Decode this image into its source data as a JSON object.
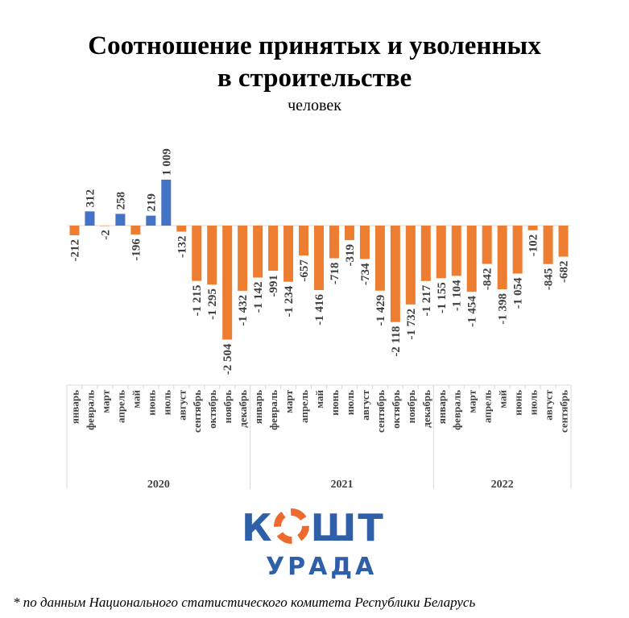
{
  "chart_data": {
    "type": "bar",
    "title": "Соотношение принятых и уволенных в строительстве",
    "title_lines": [
      "Соотношение принятых и уволенных",
      "в строительстве"
    ],
    "subtitle": "человек",
    "years": [
      {
        "label": "2020",
        "months": [
          "январь",
          "февраль",
          "март",
          "апрель",
          "май",
          "июнь",
          "июль",
          "август",
          "сентябрь",
          "октябрь",
          "ноябрь",
          "декабрь"
        ]
      },
      {
        "label": "2021",
        "months": [
          "январь",
          "февраль",
          "март",
          "апрель",
          "май",
          "июнь",
          "июль",
          "август",
          "сентябрь",
          "октябрь",
          "ноябрь",
          "декабрь"
        ]
      },
      {
        "label": "2022",
        "months": [
          "январь",
          "февраль",
          "март",
          "апрель",
          "май",
          "июнь",
          "июль",
          "август",
          "сентябрь"
        ]
      }
    ],
    "values": [
      -212,
      312,
      -2,
      258,
      -196,
      219,
      1009,
      -132,
      -1215,
      -1295,
      -2504,
      -1432,
      -1142,
      -991,
      -1234,
      -657,
      -1416,
      -718,
      -319,
      -734,
      -1429,
      -2118,
      -1732,
      -1217,
      -1155,
      -1104,
      -1454,
      -842,
      -1398,
      -1054,
      -102,
      -845,
      -682
    ],
    "data_labels": [
      "-212",
      "312",
      "-2",
      "258",
      "-196",
      "219",
      "1 009",
      "-132",
      "-1 215",
      "-1 295",
      "-2 504",
      "-1 432",
      "-1 142",
      "-991",
      "-1 234",
      "-657",
      "-1 416",
      "-718",
      "-319",
      "-734",
      "-1 429",
      "-2 118",
      "-1 732",
      "-1 217",
      "-1 155",
      "-1 104",
      "-1 454",
      "-842",
      "-1 398",
      "-1 054",
      "-102",
      "-845",
      "-682"
    ],
    "colors": {
      "positive": "#4472c4",
      "negative": "#ed7d31"
    },
    "grid": false,
    "legend": "none"
  },
  "logo": {
    "line1": "КОШТ",
    "line2": "УРАДА"
  },
  "footnote": "* по данным Национального статистического комитета Республики Беларусь"
}
